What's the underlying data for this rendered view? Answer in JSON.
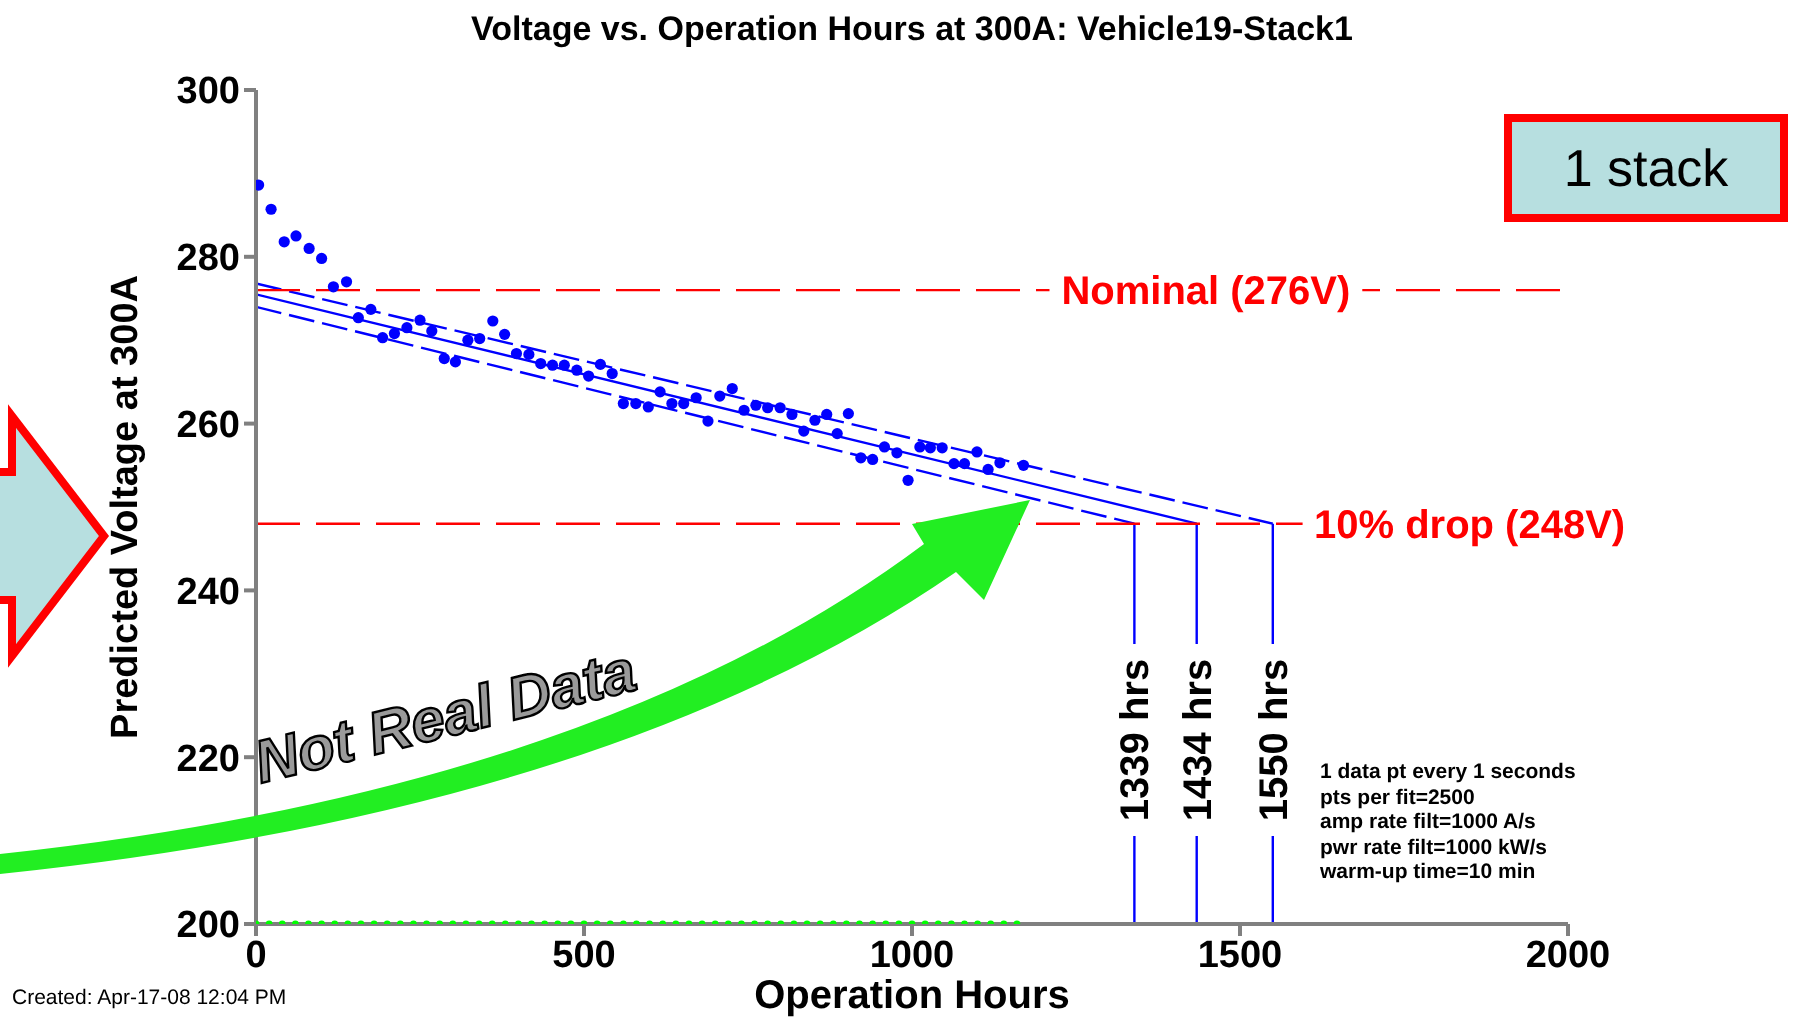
{
  "chart_data": {
    "type": "scatter",
    "title": "Voltage vs. Operation Hours at 300A: Vehicle19-Stack1",
    "xlabel": "Operation Hours",
    "ylabel": "Predicted Voltage at 300A",
    "xlim": [
      0,
      2000
    ],
    "xticks": [
      0,
      500,
      1000,
      1500,
      2000
    ],
    "ylim": [
      200,
      300
    ],
    "yticks": [
      200,
      220,
      240,
      260,
      280,
      300
    ],
    "grid": false,
    "legend": false,
    "marker": "circle",
    "series": [
      {
        "color": "#0000ff",
        "x": [
          4,
          23,
          43,
          61,
          81,
          100,
          118,
          138,
          156,
          175,
          193,
          211,
          230,
          250,
          268,
          287,
          304,
          323,
          341,
          361,
          379,
          397,
          416,
          434,
          452,
          470,
          489,
          507,
          525,
          543,
          560,
          579,
          598,
          616,
          634,
          652,
          671,
          689,
          707,
          726,
          744,
          762,
          780,
          799,
          817,
          835,
          852,
          870,
          886,
          903,
          922,
          940,
          958,
          977,
          994,
          1012,
          1028,
          1046,
          1064,
          1080,
          1099,
          1116,
          1134,
          1170
        ],
        "values": [
          288.6,
          285.7,
          281.8,
          282.5,
          281.0,
          279.8,
          276.4,
          277.0,
          272.7,
          273.7,
          270.3,
          270.8,
          271.5,
          272.4,
          271.1,
          267.8,
          267.4,
          270.0,
          270.2,
          272.3,
          270.7,
          268.4,
          268.3,
          267.2,
          267.0,
          267.0,
          266.4,
          265.7,
          267.1,
          266.0,
          262.4,
          262.4,
          262.0,
          263.8,
          262.4,
          262.4,
          263.1,
          260.3,
          263.3,
          264.2,
          261.6,
          262.2,
          261.9,
          261.9,
          261.1,
          259.1,
          260.4,
          261.1,
          258.8,
          261.2,
          255.9,
          255.7,
          257.2,
          256.5,
          253.2,
          257.2,
          257.1,
          257.1,
          255.2,
          255.2,
          256.6,
          254.5,
          255.3,
          255.0
        ]
      },
      {
        "type": "scatter",
        "color": "#00ff00",
        "x": [
          0,
          20,
          40,
          60,
          80,
          100,
          120,
          140,
          160,
          180,
          200,
          220,
          240,
          260,
          280,
          300,
          320,
          340,
          360,
          380,
          400,
          420,
          440,
          460,
          480,
          500,
          520,
          540,
          560,
          580,
          600,
          620,
          640,
          660,
          680,
          700,
          720,
          740,
          760,
          780,
          800,
          820,
          840,
          860,
          880,
          900,
          920,
          940,
          960,
          980,
          1000,
          1020,
          1040,
          1060,
          1080,
          1100,
          1120,
          1140,
          1160
        ],
        "values": [
          200,
          200,
          200,
          200,
          200,
          200,
          200,
          200,
          200,
          200,
          200,
          200,
          200,
          200,
          200,
          200,
          200,
          200,
          200,
          200,
          200,
          200,
          200,
          200,
          200,
          200,
          200,
          200,
          200,
          200,
          200,
          200,
          200,
          200,
          200,
          200,
          200,
          200,
          200,
          200,
          200,
          200,
          200,
          200,
          200,
          200,
          200,
          200,
          200,
          200,
          200,
          200,
          200,
          200,
          200,
          200,
          200,
          200,
          200
        ]
      },
      {
        "type": "line",
        "color": "#0000ff",
        "marker": "none",
        "line_style": "dashed",
        "x": [
          0,
          1550
        ],
        "values": [
          276.8,
          248
        ]
      },
      {
        "type": "line",
        "color": "#0000ff",
        "marker": "none",
        "line_style": "solid",
        "x": [
          0,
          1434
        ],
        "values": [
          275.5,
          248
        ]
      },
      {
        "type": "line",
        "color": "#0000ff",
        "marker": "none",
        "line_style": "dashed",
        "x": [
          0,
          1339
        ],
        "values": [
          274,
          248
        ]
      }
    ],
    "ref_lines": [
      {
        "axis": "y",
        "value": 276,
        "label": "Nominal (276V)",
        "color": "#ff0000",
        "line_style": "dashed"
      },
      {
        "axis": "y",
        "value": 248,
        "label": "10% drop (248V)",
        "color": "#ff0000",
        "line_style": "dashed"
      },
      {
        "axis": "x",
        "value": 1339,
        "label": "1339 hrs",
        "color": "#0000ff",
        "line_style": "solid"
      },
      {
        "axis": "x",
        "value": 1434,
        "label": "1434 hrs",
        "color": "#0000ff",
        "line_style": "solid"
      },
      {
        "axis": "x",
        "value": 1550,
        "label": "1550 hrs",
        "color": "#0000ff",
        "line_style": "solid"
      }
    ],
    "annotations": [
      "1 data pt every 1 seconds",
      "pts per fit=2500",
      "amp rate filt=1000 A/s",
      "pwr rate filt=1000 kW/s",
      "warm-up time=10 min",
      "Created: Apr-17-08 12:04 PM",
      "Not Real Data",
      "1 stack"
    ]
  }
}
